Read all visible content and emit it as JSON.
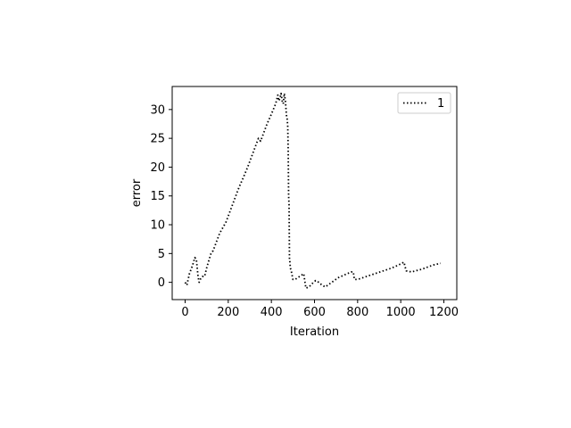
{
  "chart_data": {
    "type": "line",
    "xlabel": "Iteration",
    "ylabel": "error",
    "xlim": [
      -60,
      1260
    ],
    "ylim": [
      -3,
      34
    ],
    "xticks": [
      0,
      200,
      400,
      600,
      800,
      1000,
      1200
    ],
    "yticks": [
      0,
      5,
      10,
      15,
      20,
      25,
      30
    ],
    "xtick_labels": [
      "0",
      "200",
      "400",
      "600",
      "800",
      "1000",
      "1200"
    ],
    "ytick_labels": [
      "0",
      "5",
      "10",
      "15",
      "20",
      "25",
      "30"
    ],
    "grid": false,
    "legend": {
      "position": "top-right"
    },
    "series": [
      {
        "name": "1",
        "color": "#000000",
        "linestyle": "dotted",
        "x": [
          0,
          8,
          20,
          35,
          45,
          52,
          60,
          65,
          70,
          80,
          90,
          100,
          110,
          120,
          130,
          145,
          160,
          175,
          190,
          210,
          230,
          250,
          270,
          290,
          310,
          330,
          340,
          350,
          360,
          380,
          400,
          420,
          430,
          435,
          440,
          445,
          450,
          455,
          460,
          465,
          470,
          473,
          476,
          478,
          480,
          482,
          484,
          486,
          488,
          492,
          500,
          510,
          530,
          550,
          560,
          575,
          590,
          605,
          620,
          635,
          650,
          680,
          710,
          740,
          770,
          780,
          785,
          800,
          840,
          880,
          920,
          960,
          1000,
          1015,
          1025,
          1050,
          1100,
          1150,
          1185
        ],
        "y": [
          0,
          -0.5,
          1.5,
          3,
          4.3,
          4,
          1,
          0,
          0.5,
          1,
          1,
          2.5,
          3.8,
          5,
          5.5,
          7,
          8.5,
          9.5,
          10.5,
          12.5,
          14.5,
          16.5,
          18.2,
          20,
          22,
          24,
          25,
          24.5,
          25.5,
          27.5,
          29.2,
          31,
          32.5,
          31.5,
          32,
          32.8,
          31.5,
          31,
          32.8,
          31.5,
          29,
          28.5,
          27,
          23,
          15,
          13.5,
          4,
          3.5,
          2.5,
          2,
          0.5,
          0.5,
          1,
          1.5,
          -1,
          -0.8,
          -0.2,
          0.3,
          0,
          -0.5,
          -0.8,
          0,
          0.8,
          1.3,
          1.8,
          1.8,
          0.5,
          0.5,
          1,
          1.5,
          2,
          2.5,
          3.2,
          3.5,
          2,
          1.8,
          2.3,
          3,
          3.3
        ]
      }
    ]
  }
}
